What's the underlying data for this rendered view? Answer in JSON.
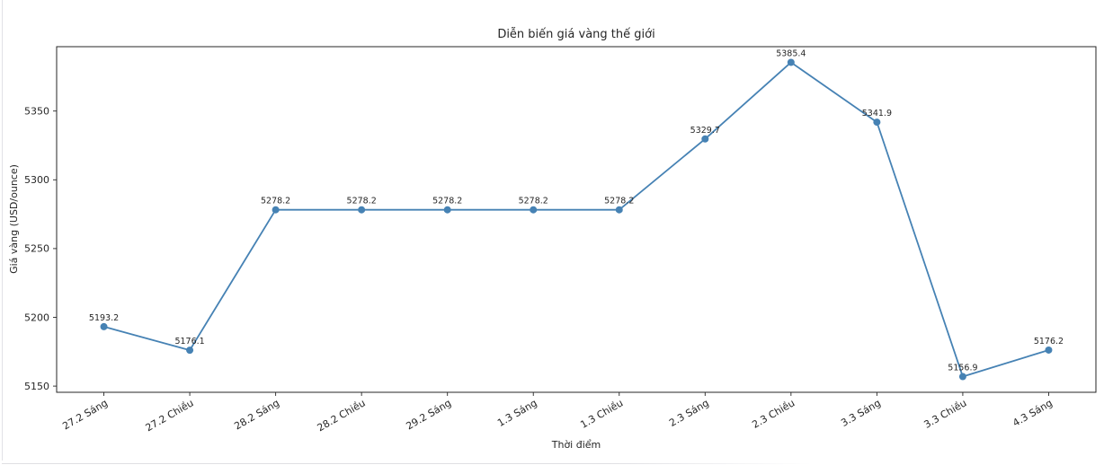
{
  "page": {
    "background": "#ffffff",
    "card_border_color": "#e2e2e6"
  },
  "chart_data": {
    "type": "line",
    "title": "Diễn biến giá vàng thế giới",
    "xlabel": "Thời điểm",
    "ylabel": "Giá vàng (USD/ounce)",
    "categories": [
      "27.2 Sáng",
      "27.2 Chiều",
      "28.2 Sáng",
      "28.2 Chiều",
      "29.2 Sáng",
      "1.3 Sáng",
      "1.3 Chiều",
      "2.3 Sáng",
      "2.3 Chiều",
      "3.3 Sáng",
      "3.3 Chiều",
      "4.3 Sáng"
    ],
    "values": [
      5193.2,
      5176.1,
      5278.2,
      5278.2,
      5278.2,
      5278.2,
      5278.2,
      5329.7,
      5385.4,
      5341.9,
      5156.9,
      5176.2
    ],
    "point_labels": [
      "5193.2",
      "5176.1",
      "5278.2",
      "5278.2",
      "5278.2",
      "5278.2",
      "5278.2",
      "5329.7",
      "5385.4",
      "5341.9",
      "5156.9",
      "5176.2"
    ],
    "yticks": [
      5150,
      5200,
      5250,
      5300,
      5350
    ],
    "ylim": [
      5145.5,
      5396.8
    ],
    "grid": false,
    "legend": "none",
    "line_color": "#4682b4",
    "marker": "circle",
    "marker_color": "#4682b4",
    "axis_color": "#262626",
    "text_color": "#262626",
    "x_tick_rotation_deg": 30
  }
}
